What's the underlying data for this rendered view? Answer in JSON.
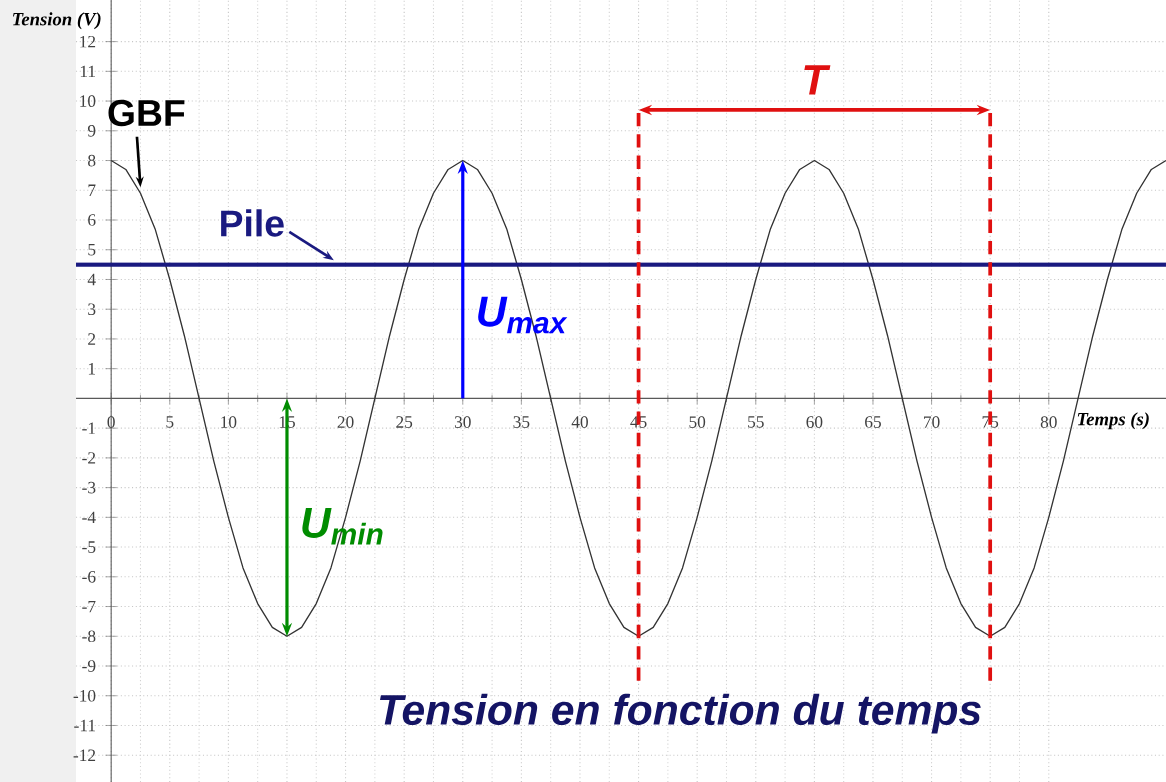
{
  "chart_data": {
    "type": "line",
    "title": "Tension en fonction du temps",
    "xlabel": "Temps (s)",
    "ylabel": "Tension (V)",
    "xlim": [
      -3,
      90
    ],
    "ylim": [
      -12.9,
      13.4
    ],
    "xticks": [
      0,
      5,
      10,
      15,
      20,
      25,
      30,
      35,
      40,
      45,
      50,
      55,
      60,
      65,
      70,
      75,
      80
    ],
    "yticks": [
      -12,
      -11,
      -10,
      -9,
      -8,
      -7,
      -6,
      -5,
      -4,
      -3,
      -2,
      -1,
      1,
      2,
      3,
      4,
      5,
      6,
      7,
      8,
      9,
      10,
      11,
      12
    ],
    "grid": true,
    "marker": "none",
    "line_style": "solid",
    "series": [
      {
        "name": "GBF",
        "color": "#333333",
        "x": [
          0,
          1.25,
          2.5,
          3.75,
          5,
          6.25,
          7.5,
          8.75,
          10,
          11.25,
          12.5,
          13.75,
          15,
          16.25,
          17.5,
          18.75,
          20,
          21.25,
          22.5,
          23.75,
          25,
          26.25,
          27.5,
          28.75,
          30,
          31.25,
          32.5,
          33.75,
          35,
          36.25,
          37.5,
          38.75,
          40,
          41.25,
          42.5,
          43.75,
          45,
          46.25,
          47.5,
          48.75,
          50,
          51.25,
          52.5,
          53.75,
          55,
          56.25,
          57.5,
          58.75,
          60,
          61.25,
          62.5,
          63.75,
          65,
          66.25,
          67.5,
          68.75,
          70,
          71.25,
          72.5,
          73.75,
          75,
          76.25,
          77.5,
          78.75,
          80,
          81.25,
          82.5,
          83.75,
          85,
          86.25,
          87.5,
          88.75,
          90
        ],
        "values": [
          8,
          7.7,
          6.9,
          5.7,
          4,
          2.1,
          0,
          -2.1,
          -4,
          -5.7,
          -6.9,
          -7.7,
          -8,
          -7.7,
          -6.9,
          -5.7,
          -4,
          -2.1,
          0,
          2.1,
          4,
          5.7,
          6.9,
          7.7,
          8,
          7.7,
          6.9,
          5.7,
          4,
          2.1,
          0,
          -2.1,
          -4,
          -5.7,
          -6.9,
          -7.7,
          -8,
          -7.7,
          -6.9,
          -5.7,
          -4,
          -2.1,
          0,
          2.1,
          4,
          5.7,
          6.9,
          7.7,
          8,
          7.7,
          6.9,
          5.7,
          4,
          2.1,
          0,
          -2.1,
          -4,
          -5.7,
          -6.9,
          -7.7,
          -8,
          -7.7,
          -6.9,
          -5.7,
          -4,
          -2.1,
          0,
          2.1,
          4,
          5.7,
          6.9,
          7.7,
          8
        ]
      },
      {
        "name": "Pile",
        "color": "#1a1a80",
        "x": [
          -3,
          90
        ],
        "values": [
          4.5,
          4.5
        ]
      },
      {
        "color": "#e01010",
        "line_style": "dashed",
        "x": [
          45,
          45
        ],
        "values": [
          -9.5,
          9.7
        ]
      },
      {
        "color": "#e01010",
        "line_style": "dashed",
        "x": [
          75,
          75
        ],
        "values": [
          -9.5,
          9.7
        ]
      }
    ],
    "annotations": [
      "U$_{max}$",
      {
        "text": "U$_{min}$",
        "x": 15,
        "y": -8
      },
      "T"
    ]
  }
}
